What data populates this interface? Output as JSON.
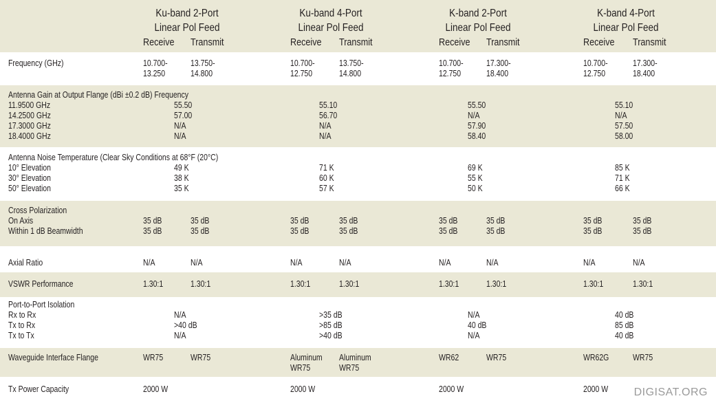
{
  "header": {
    "columns": [
      {
        "line1": "Ku-band 2-Port",
        "line2": "Linear Pol Feed",
        "receive": "Receive",
        "transmit": "Transmit"
      },
      {
        "line1": "Ku-band 4-Port",
        "line2": "Linear Pol Feed",
        "receive": "Receive",
        "transmit": "Transmit"
      },
      {
        "line1": "K-band 2-Port",
        "line2": "Linear Pol Feed",
        "receive": "Receive",
        "transmit": "Transmit"
      },
      {
        "line1": "K-band 4-Port",
        "line2": "Linear Pol Feed",
        "receive": "Receive",
        "transmit": "Transmit"
      }
    ]
  },
  "rows": [
    {
      "label": [
        "Frequency (GHz)"
      ],
      "cells": [
        {
          "receive": [
            "10.700-",
            "13.250"
          ],
          "transmit": [
            "13.750-",
            "14.800"
          ]
        },
        {
          "receive": [
            "10.700-",
            "12.750"
          ],
          "transmit": [
            "13.750-",
            "14.800"
          ]
        },
        {
          "receive": [
            "10.700-",
            "12.750"
          ],
          "transmit": [
            "17.300-",
            "18.400"
          ]
        },
        {
          "receive": [
            "10.700-",
            "12.750"
          ],
          "transmit": [
            "17.300-",
            "18.400"
          ]
        }
      ]
    },
    {
      "label": [
        "Antenna Gain at Output Flange (dBi ±0.2 dB) Frequency",
        "11.9500 GHz",
        "14.2500 GHz",
        "17.3000 GHz",
        "18.4000 GHz"
      ],
      "cells": [
        {
          "both": [
            "55.50",
            "57.00",
            "N/A",
            "N/A"
          ]
        },
        {
          "both": [
            "55.10",
            "56.70",
            "N/A",
            "N/A"
          ]
        },
        {
          "both": [
            "55.50",
            "N/A",
            "57.90",
            "58.40"
          ]
        },
        {
          "both": [
            "55.10",
            "N/A",
            "57.50",
            "58.00"
          ]
        }
      ]
    },
    {
      "label": [
        "Antenna Noise Temperature (Clear Sky Conditions at 68°F (20°C)",
        "10° Elevation",
        "30° Elevation",
        "50° Elevation"
      ],
      "cells": [
        {
          "both": [
            "49 K",
            "38 K",
            "35 K"
          ]
        },
        {
          "both": [
            "71 K",
            "60 K",
            "57 K"
          ]
        },
        {
          "both": [
            "69 K",
            "55 K",
            "50 K"
          ]
        },
        {
          "both": [
            "85 K",
            "71 K",
            "66 K"
          ]
        }
      ]
    },
    {
      "label": [
        "Cross Polarization",
        "On Axis",
        "Within 1 dB Beamwidth"
      ],
      "cells": [
        {
          "receive": [
            "35 dB",
            "35 dB"
          ],
          "transmit": [
            "35 dB",
            "35 dB"
          ]
        },
        {
          "receive": [
            "35 dB",
            "35 dB"
          ],
          "transmit": [
            "35 dB",
            "35 dB"
          ]
        },
        {
          "receive": [
            "35 dB",
            "35 dB"
          ],
          "transmit": [
            "35 dB",
            "35 dB"
          ]
        },
        {
          "receive": [
            "35 dB",
            "35 dB"
          ],
          "transmit": [
            "35 dB",
            "35 dB"
          ]
        }
      ]
    },
    {
      "label": [
        "Axial Ratio"
      ],
      "cells": [
        {
          "receive": [
            "N/A"
          ],
          "transmit": [
            "N/A"
          ]
        },
        {
          "receive": [
            "N/A"
          ],
          "transmit": [
            "N/A"
          ]
        },
        {
          "receive": [
            "N/A"
          ],
          "transmit": [
            "N/A"
          ]
        },
        {
          "receive": [
            "N/A"
          ],
          "transmit": [
            "N/A"
          ]
        }
      ]
    },
    {
      "label": [
        "VSWR Performance"
      ],
      "cells": [
        {
          "receive": [
            "1.30:1"
          ],
          "transmit": [
            "1.30:1"
          ]
        },
        {
          "receive": [
            "1.30:1"
          ],
          "transmit": [
            "1.30:1"
          ]
        },
        {
          "receive": [
            "1.30:1"
          ],
          "transmit": [
            "1.30:1"
          ]
        },
        {
          "receive": [
            "1.30:1"
          ],
          "transmit": [
            "1.30:1"
          ]
        }
      ]
    },
    {
      "label": [
        "Port-to-Port Isolation",
        "Rx to Rx",
        "Tx to Rx",
        "Tx to Tx"
      ],
      "cells": [
        {
          "both": [
            "N/A",
            ">40 dB",
            "N/A"
          ]
        },
        {
          "both": [
            ">35 dB",
            ">85 dB",
            ">40 dB"
          ]
        },
        {
          "both": [
            "N/A",
            "40 dB",
            "N/A"
          ]
        },
        {
          "both": [
            "40 dB",
            "85 dB",
            "40 dB"
          ]
        }
      ]
    },
    {
      "label": [
        "Waveguide Interface Flange"
      ],
      "cells": [
        {
          "receive": [
            "WR75"
          ],
          "transmit": [
            "WR75"
          ]
        },
        {
          "receive": [
            "Aluminum",
            "WR75"
          ],
          "transmit": [
            "Aluminum",
            "WR75"
          ]
        },
        {
          "receive": [
            "WR62"
          ],
          "transmit": [
            "WR75"
          ]
        },
        {
          "receive": [
            "WR62G"
          ],
          "transmit": [
            "WR75"
          ]
        }
      ]
    },
    {
      "label": [
        "Tx Power Capacity"
      ],
      "cells": [
        {
          "receive": [
            "2000 W"
          ]
        },
        {
          "receive": [
            "2000 W"
          ]
        },
        {
          "receive": [
            "2000 W"
          ]
        },
        {
          "receive": [
            "2000 W"
          ]
        }
      ]
    }
  ],
  "watermark": "DIGISAT.ORG"
}
